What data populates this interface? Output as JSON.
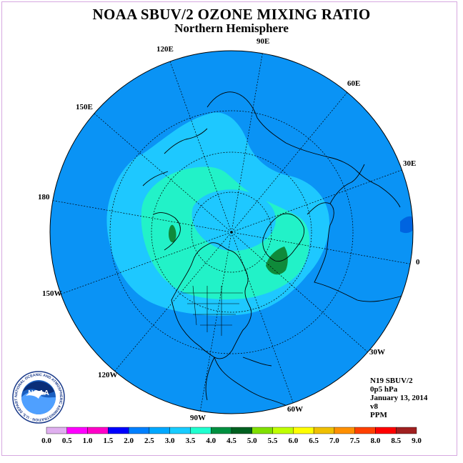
{
  "title": "NOAA SBUV/2 OZONE MIXING RATIO",
  "subtitle": "Northern Hemisphere",
  "longitude_labels": [
    "90E",
    "60E",
    "30E",
    "0",
    "30W",
    "60W",
    "90W",
    "120W",
    "150W",
    "180",
    "150E",
    "120E"
  ],
  "info": {
    "instrument": "N19 SBUV/2",
    "level": "0p5 hPa",
    "date": "January 13, 2014",
    "version": "v8",
    "units": "PPM"
  },
  "logo": {
    "text": "NOAA",
    "ring_text": "NATIONAL OCEANIC AND ATMOSPHERIC ADMINISTRATION · U.S. DEPARTMENT OF COMMERCE"
  },
  "colorbar": {
    "ticks": [
      "0.0",
      "0.5",
      "1.0",
      "1.5",
      "2.0",
      "2.5",
      "3.0",
      "3.5",
      "4.0",
      "4.5",
      "5.0",
      "5.5",
      "6.0",
      "6.5",
      "7.0",
      "7.5",
      "8.0",
      "8.5",
      "9.0"
    ],
    "colors": [
      "#c88be8",
      "#e0b0f0",
      "#ff00ff",
      "#ff00c8",
      "#0000ff",
      "#0080ff",
      "#00a8ff",
      "#18ccff",
      "#20ffd0",
      "#009040",
      "#006020",
      "#80e000",
      "#c0ff00",
      "#ffff00",
      "#f0c000",
      "#ff9000",
      "#ff4000",
      "#ff0000",
      "#a02020",
      "#805030"
    ]
  },
  "colors": {
    "background": "#0a93f5",
    "contour_3": "#1ec8ff",
    "contour_35": "#22f2c8",
    "contour_4": "#0f8a3a",
    "contour_darkblue": "#0064e0"
  }
}
